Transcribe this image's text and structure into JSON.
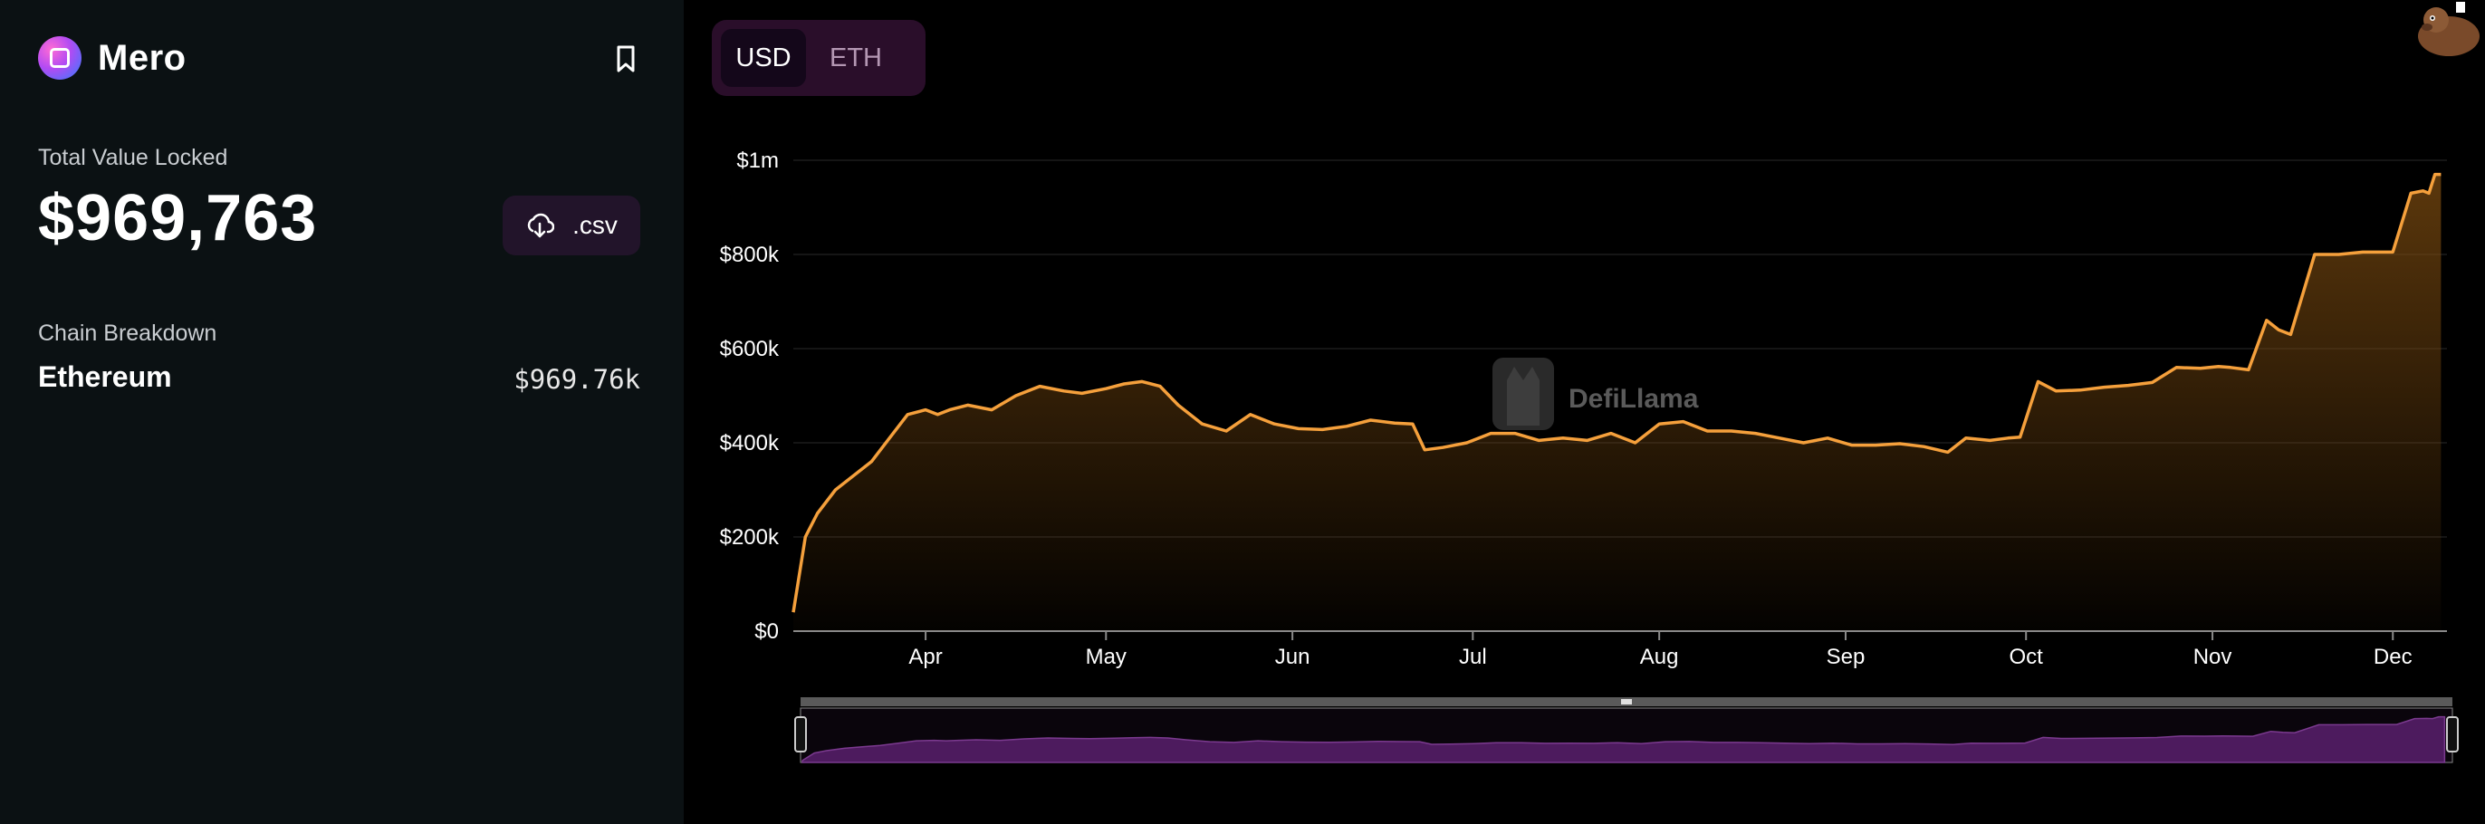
{
  "protocol": {
    "name": "Mero",
    "logo_icon": "mero-logo",
    "bookmark_icon": "bookmark-icon"
  },
  "tvl": {
    "label": "Total Value Locked",
    "value": "$969,763",
    "csv_label": ".csv",
    "csv_icon": "download-cloud-icon"
  },
  "chains": {
    "label": "Chain Breakdown",
    "items": [
      {
        "name": "Ethereum",
        "value": "$969.76k"
      }
    ]
  },
  "currency_toggle": {
    "options": [
      "USD",
      "ETH"
    ],
    "selected": "USD"
  },
  "watermark": {
    "text": "DefiLlama"
  },
  "colors": {
    "line": "#f5a03c",
    "area_top": "#7a4a10",
    "sidebar_bg": "#0b1113",
    "toggle_bg": "#2a0e2a",
    "brush": "#4d1b5e"
  },
  "chart_data": {
    "type": "area",
    "ylabel": "",
    "xlabel": "",
    "ylim": [
      0,
      1000000
    ],
    "y_ticks": [
      {
        "value": 0,
        "label": "$0"
      },
      {
        "value": 200000,
        "label": "$200k"
      },
      {
        "value": 400000,
        "label": "$400k"
      },
      {
        "value": 600000,
        "label": "$600k"
      },
      {
        "value": 800000,
        "label": "$800k"
      },
      {
        "value": 1000000,
        "label": "$1m"
      }
    ],
    "x_range": [
      "2022-03-10",
      "2022-12-10"
    ],
    "x_ticks": [
      {
        "date": "2022-04-01",
        "label": "Apr"
      },
      {
        "date": "2022-05-01",
        "label": "May"
      },
      {
        "date": "2022-06-01",
        "label": "Jun"
      },
      {
        "date": "2022-07-01",
        "label": "Jul"
      },
      {
        "date": "2022-08-01",
        "label": "Aug"
      },
      {
        "date": "2022-09-01",
        "label": "Sep"
      },
      {
        "date": "2022-10-01",
        "label": "Oct"
      },
      {
        "date": "2022-11-01",
        "label": "Nov"
      },
      {
        "date": "2022-12-01",
        "label": "Dec"
      }
    ],
    "grid": true,
    "series": [
      {
        "x": [
          "2022-03-10",
          "2022-03-12",
          "2022-03-14",
          "2022-03-17",
          "2022-03-20",
          "2022-03-23",
          "2022-03-26",
          "2022-03-29",
          "2022-04-01",
          "2022-04-03",
          "2022-04-05",
          "2022-04-08",
          "2022-04-12",
          "2022-04-16",
          "2022-04-20",
          "2022-04-24",
          "2022-04-27",
          "2022-05-01",
          "2022-05-04",
          "2022-05-07",
          "2022-05-10",
          "2022-05-13",
          "2022-05-17",
          "2022-05-21",
          "2022-05-25",
          "2022-05-29",
          "2022-06-02",
          "2022-06-06",
          "2022-06-10",
          "2022-06-14",
          "2022-06-18",
          "2022-06-21",
          "2022-06-23",
          "2022-06-26",
          "2022-06-30",
          "2022-07-04",
          "2022-07-08",
          "2022-07-12",
          "2022-07-16",
          "2022-07-20",
          "2022-07-24",
          "2022-07-28",
          "2022-08-01",
          "2022-08-05",
          "2022-08-09",
          "2022-08-13",
          "2022-08-17",
          "2022-08-21",
          "2022-08-25",
          "2022-08-29",
          "2022-09-02",
          "2022-09-06",
          "2022-09-10",
          "2022-09-14",
          "2022-09-18",
          "2022-09-21",
          "2022-09-25",
          "2022-09-28",
          "2022-09-30",
          "2022-10-03",
          "2022-10-06",
          "2022-10-10",
          "2022-10-14",
          "2022-10-18",
          "2022-10-22",
          "2022-10-26",
          "2022-10-30",
          "2022-11-02",
          "2022-11-04",
          "2022-11-07",
          "2022-11-10",
          "2022-11-12",
          "2022-11-14",
          "2022-11-18",
          "2022-11-22",
          "2022-11-26",
          "2022-11-30",
          "2022-12-01",
          "2022-12-04",
          "2022-12-06",
          "2022-12-07",
          "2022-12-08",
          "2022-12-09"
        ],
        "values": [
          40000,
          200000,
          250000,
          300000,
          330000,
          360000,
          410000,
          460000,
          470000,
          460000,
          470000,
          480000,
          470000,
          500000,
          520000,
          510000,
          505000,
          515000,
          525000,
          530000,
          520000,
          480000,
          440000,
          425000,
          460000,
          440000,
          430000,
          428000,
          435000,
          448000,
          442000,
          440000,
          385000,
          390000,
          400000,
          420000,
          420000,
          405000,
          410000,
          405000,
          420000,
          400000,
          440000,
          445000,
          425000,
          425000,
          420000,
          410000,
          400000,
          410000,
          395000,
          395000,
          398000,
          392000,
          380000,
          410000,
          405000,
          410000,
          412000,
          530000,
          510000,
          512000,
          518000,
          522000,
          528000,
          560000,
          558000,
          562000,
          560000,
          555000,
          660000,
          640000,
          630000,
          800000,
          800000,
          805000,
          805000,
          805000,
          930000,
          935000,
          930000,
          970000,
          970000
        ]
      }
    ]
  }
}
